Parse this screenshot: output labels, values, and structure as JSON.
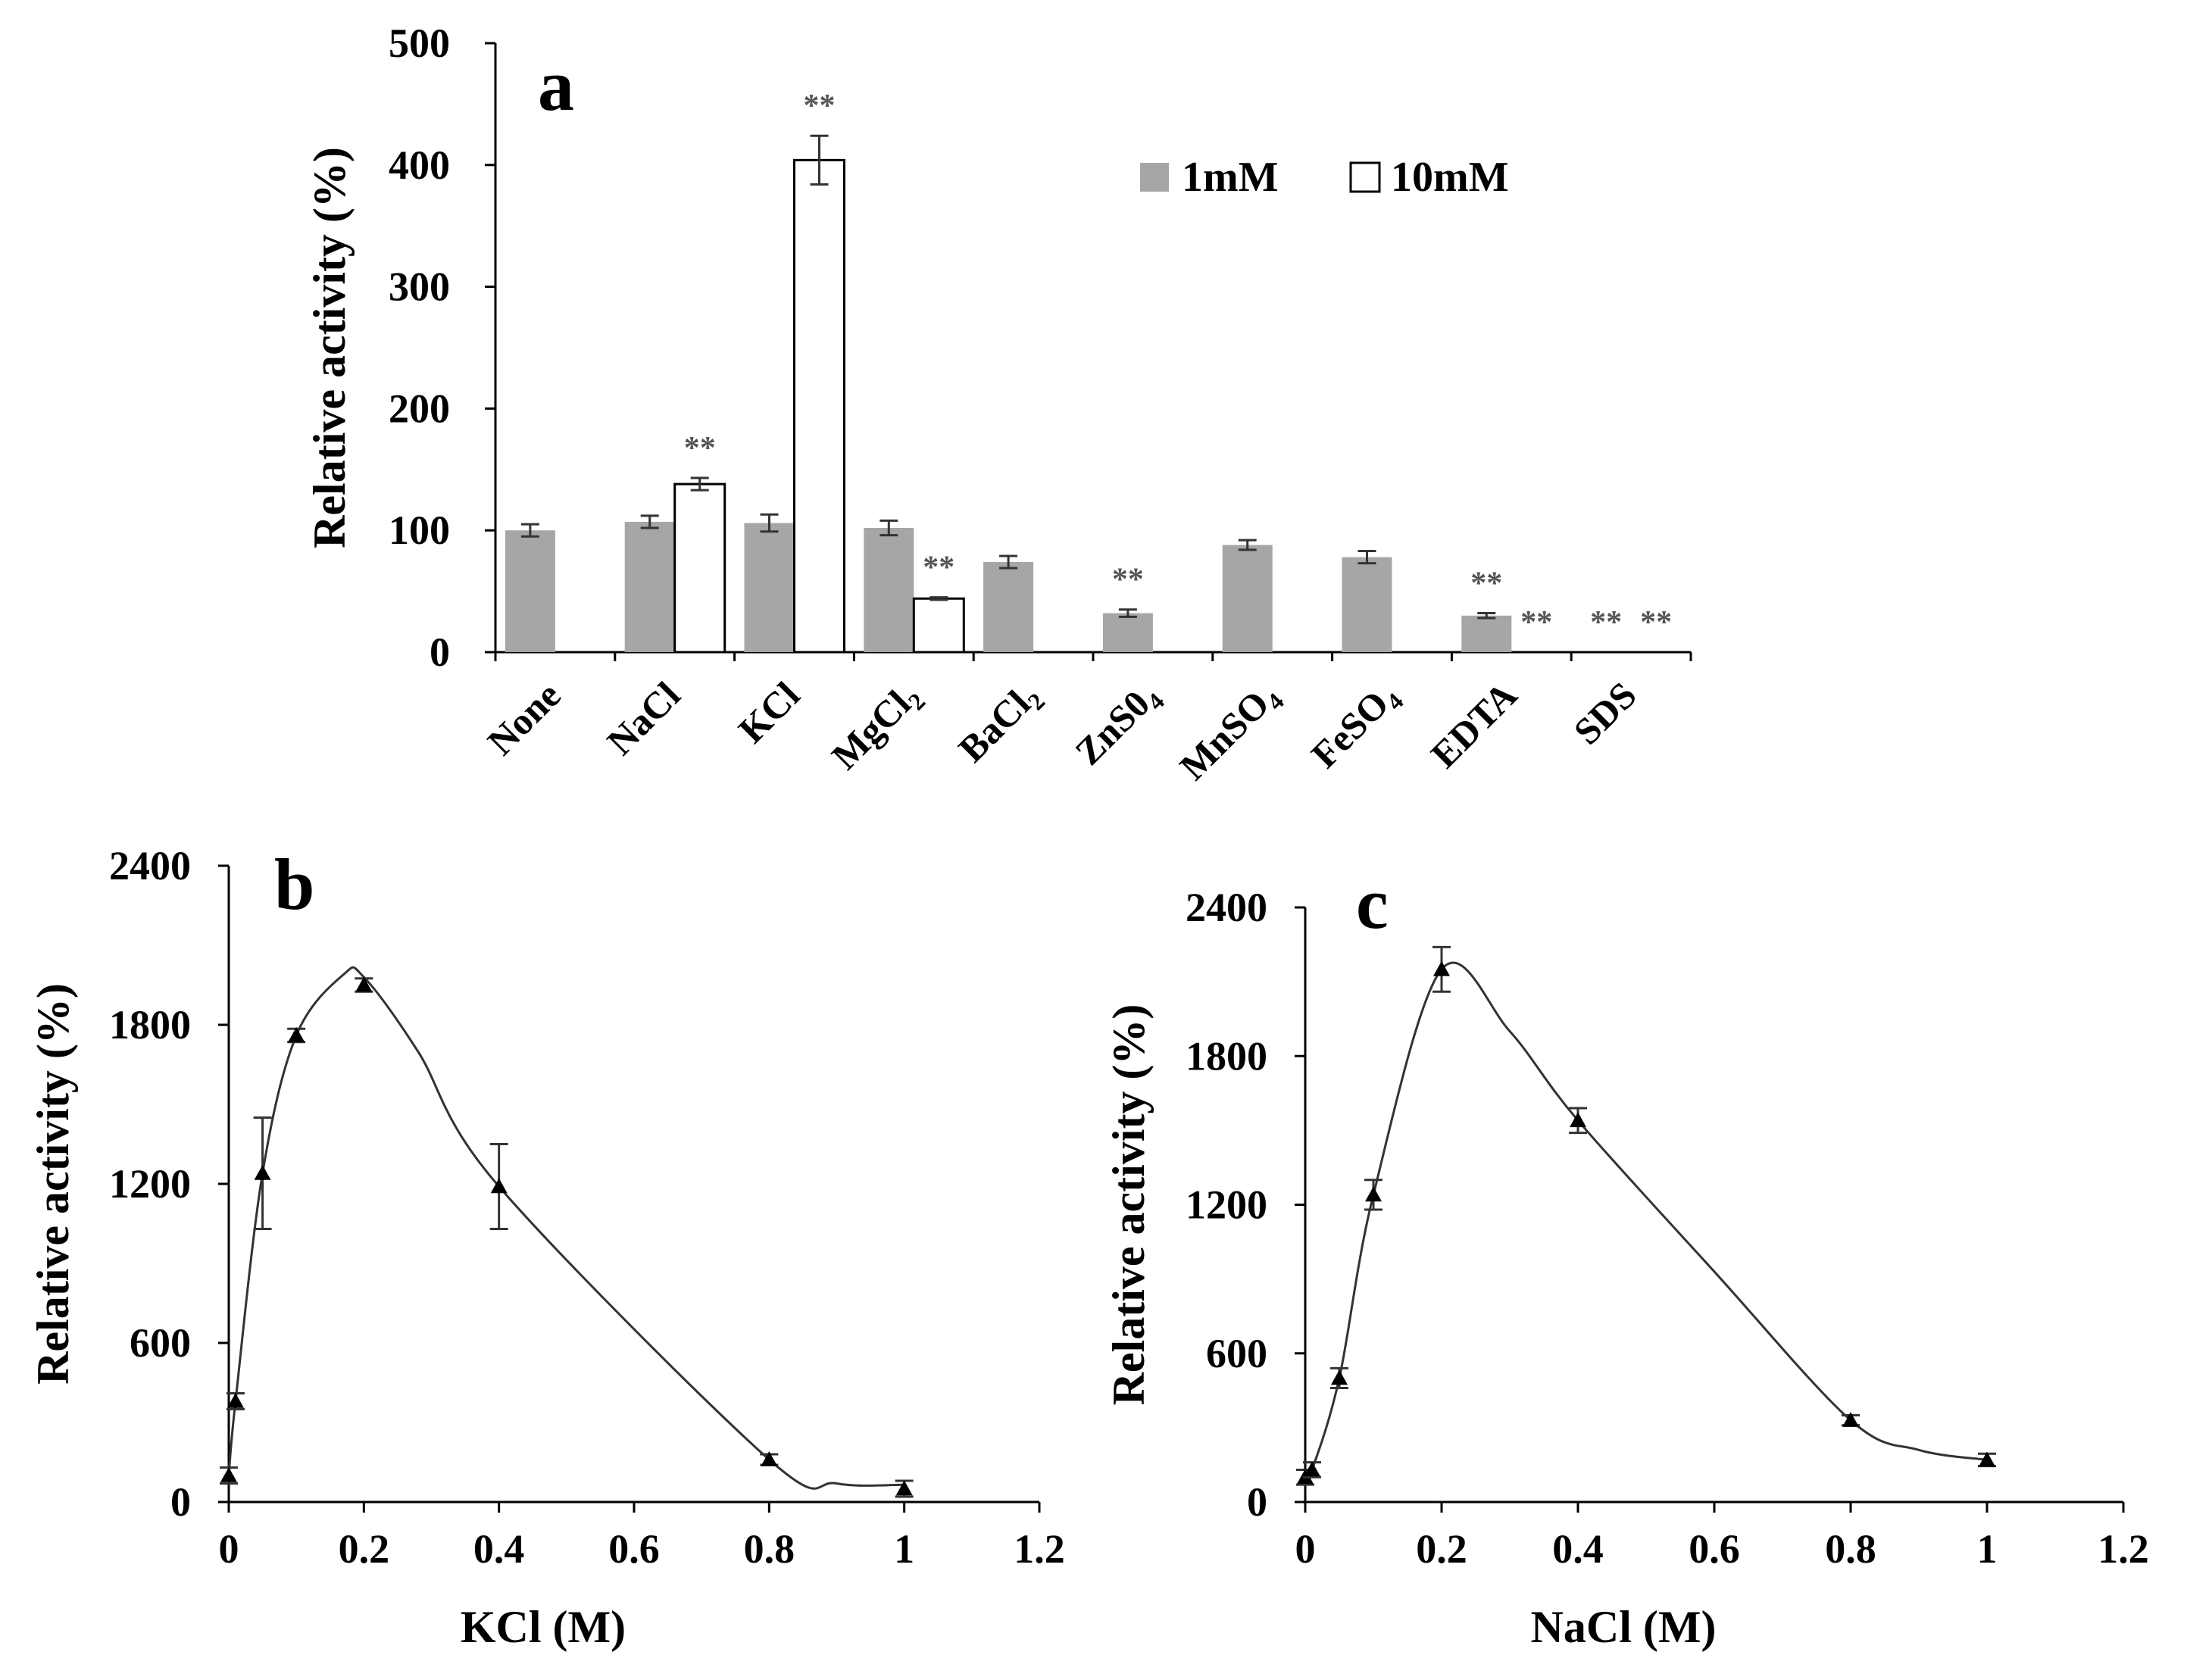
{
  "chart_data": [
    {
      "type": "bar",
      "panel_label": "a",
      "title": "",
      "ylabel": "Relative activity (%)",
      "xlabel": "",
      "ylim": [
        0,
        500
      ],
      "yticks": [
        "0",
        "100",
        "200",
        "300",
        "400",
        "500"
      ],
      "categories": [
        {
          "name": "None",
          "base": "None",
          "sub": ""
        },
        {
          "name": "NaCl",
          "base": "NaCl",
          "sub": ""
        },
        {
          "name": "KCl",
          "base": "KCl",
          "sub": ""
        },
        {
          "name": "MgCl2",
          "base": "MgCl",
          "sub": "2"
        },
        {
          "name": "BaCl2",
          "base": "BaCl",
          "sub": "2"
        },
        {
          "name": "ZnS04",
          "base": "ZnS0",
          "sub": "4"
        },
        {
          "name": "MnSO4",
          "base": "MnSO",
          "sub": "4"
        },
        {
          "name": "FeSO4",
          "base": "FeSO",
          "sub": "4"
        },
        {
          "name": "EDTA",
          "base": "EDTA",
          "sub": ""
        },
        {
          "name": "SDS",
          "base": "SDS",
          "sub": ""
        }
      ],
      "legend": {
        "position": "top-right"
      },
      "series": [
        {
          "name": "1mM",
          "color": "#a6a6a6",
          "values": [
            100,
            107,
            106,
            102,
            74,
            32,
            88,
            78,
            30,
            0
          ],
          "errors": [
            5,
            5,
            7,
            6,
            5,
            3,
            4,
            5,
            2,
            0
          ],
          "sig": [
            "",
            "",
            "",
            "",
            "",
            "**",
            "",
            "",
            "**",
            "**"
          ]
        },
        {
          "name": "10mM",
          "color": "#ffffff",
          "values": [
            null,
            138,
            404,
            44,
            null,
            null,
            null,
            null,
            0,
            0
          ],
          "errors": [
            0,
            5,
            20,
            1,
            0,
            0,
            0,
            0,
            0,
            0
          ],
          "sig": [
            "",
            "**",
            "**",
            "**",
            "",
            "",
            "",
            "",
            "**",
            "**"
          ]
        }
      ]
    },
    {
      "type": "line",
      "panel_label": "b",
      "xlabel": "KCl (M)",
      "ylabel": "Relative activity (%)",
      "xlim": [
        0,
        1.2
      ],
      "ylim": [
        0,
        2400
      ],
      "xticks": [
        "0",
        "0.2",
        "0.4",
        "0.6",
        "0.8",
        "1",
        "1.2"
      ],
      "yticks": [
        "0",
        "600",
        "1200",
        "1800",
        "2400"
      ],
      "series": [
        {
          "name": "KCl",
          "x": [
            0,
            0.01,
            0.05,
            0.1,
            0.2,
            0.4,
            0.8,
            1.0
          ],
          "y": [
            100,
            380,
            1240,
            1760,
            1950,
            1190,
            160,
            50
          ],
          "errors": [
            30,
            30,
            210,
            25,
            25,
            160,
            20,
            30
          ],
          "curve": [
            [
              0,
              100
            ],
            [
              0.01,
              380
            ],
            [
              0.05,
              1240
            ],
            [
              0.1,
              1760
            ],
            [
              0.17,
              1990
            ],
            [
              0.2,
              1980
            ],
            [
              0.28,
              1700
            ],
            [
              0.4,
              1190
            ],
            [
              0.8,
              160
            ],
            [
              0.9,
              70
            ],
            [
              1.0,
              65
            ]
          ]
        }
      ]
    },
    {
      "type": "line",
      "panel_label": "c",
      "xlabel": "NaCl (M)",
      "ylabel": "Relative activity (%)",
      "xlim": [
        0,
        1.2
      ],
      "ylim": [
        0,
        2400
      ],
      "xticks": [
        "0",
        "0.2",
        "0.4",
        "0.6",
        "0.8",
        "1",
        "1.2"
      ],
      "yticks": [
        "0",
        "600",
        "1200",
        "1800",
        "2400"
      ],
      "series": [
        {
          "name": "NaCl",
          "x": [
            0,
            0.01,
            0.05,
            0.1,
            0.2,
            0.4,
            0.8,
            1.0
          ],
          "y": [
            100,
            130,
            500,
            1240,
            2150,
            1540,
            330,
            170
          ],
          "errors": [
            30,
            30,
            40,
            60,
            90,
            50,
            20,
            25
          ],
          "curve": [
            [
              0,
              100
            ],
            [
              0.01,
              130
            ],
            [
              0.05,
              500
            ],
            [
              0.1,
              1240
            ],
            [
              0.2,
              2150
            ],
            [
              0.3,
              1900
            ],
            [
              0.4,
              1540
            ],
            [
              0.6,
              930
            ],
            [
              0.8,
              330
            ],
            [
              0.9,
              210
            ],
            [
              1.0,
              170
            ]
          ]
        }
      ]
    }
  ]
}
